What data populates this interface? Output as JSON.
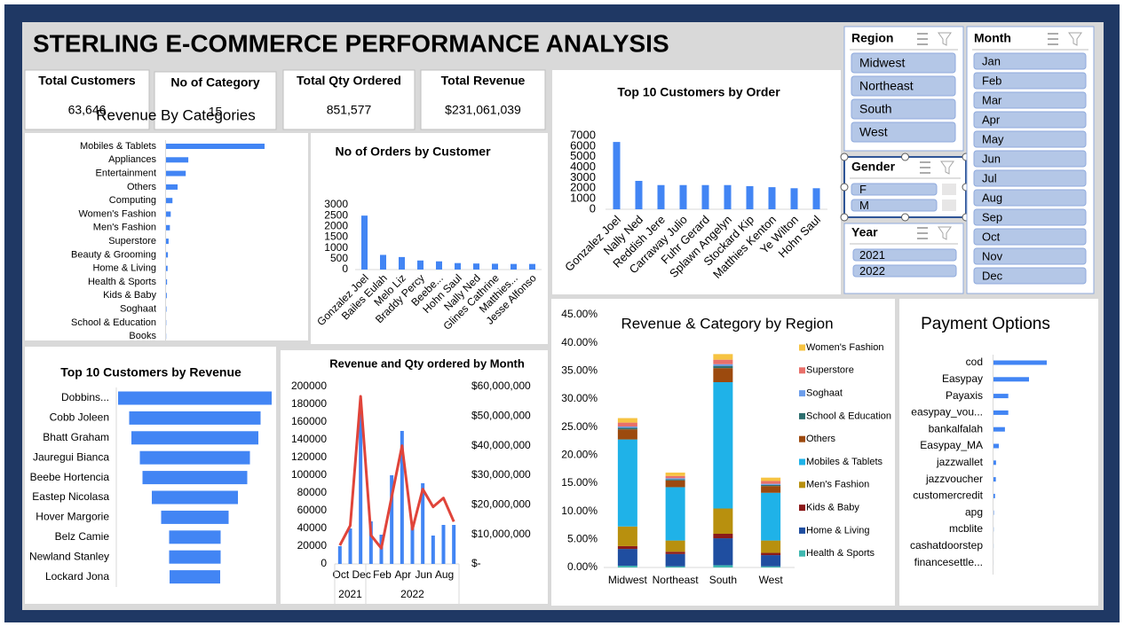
{
  "header": {
    "title": "STERLING E-COMMERCE PERFORMANCE ANALYSIS"
  },
  "kpis": [
    {
      "label": "Total Customers",
      "value": "63,646"
    },
    {
      "label": "No of Category",
      "value": "15"
    },
    {
      "label": "Total Qty Ordered",
      "value": "851,577"
    },
    {
      "label": "Total Revenue",
      "value": "$231,061,039"
    }
  ],
  "slicers": [
    {
      "title": "Region",
      "items": [
        "Midwest",
        "Northeast",
        "South",
        "West"
      ]
    },
    {
      "title": "Gender",
      "items": [
        "F",
        "M"
      ]
    },
    {
      "title": "Year",
      "items": [
        "2021",
        "2022"
      ]
    },
    {
      "title": "Month",
      "items": [
        "Jan",
        "Feb",
        "Mar",
        "Apr",
        "May",
        "Jun",
        "Jul",
        "Aug",
        "Sep",
        "Oct",
        "Nov",
        "Dec"
      ]
    }
  ],
  "chart_data": [
    {
      "type": "hbar",
      "title": "Revenue By Categories",
      "categories": [
        "Mobiles & Tablets",
        "Appliances",
        "Entertainment",
        "Others",
        "Computing",
        "Women's Fashion",
        "Men's Fashion",
        "Superstore",
        "Beauty & Grooming",
        "Home & Living",
        "Health & Sports",
        "Kids & Baby",
        "Soghaat",
        "School & Education",
        "Books"
      ],
      "values": [
        115000000,
        26000000,
        23000000,
        13500000,
        7500000,
        5500000,
        4500000,
        3000000,
        2200000,
        1800000,
        1200000,
        900000,
        500000,
        300000,
        200000
      ],
      "color": "#4285f4"
    },
    {
      "type": "bar",
      "title": "No of Orders by Customer",
      "categories": [
        "Gonzalez Joel",
        "Bailes Eulah",
        "Melo Liz",
        "Braddy Percy",
        "Beebe...",
        "Hohn Saul",
        "Nally Ned",
        "Glines Cathrine",
        "Matthies...",
        "Jesse Alfonso"
      ],
      "values": [
        2500,
        680,
        580,
        420,
        380,
        300,
        280,
        270,
        260,
        260
      ],
      "color": "#4285f4",
      "ylim": [
        0,
        3000
      ],
      "yticks": [
        0,
        500,
        1000,
        1500,
        2000,
        2500,
        3000
      ]
    },
    {
      "type": "bar",
      "title": "Top 10 Customers by Order",
      "categories": [
        "Gonzalez Joel",
        "Nally Ned",
        "Reddish Jere",
        "Carraway Julio",
        "Fuhr Gerard",
        "Splawn Angelyn",
        "Stockard Kip",
        "Matthies Kenton",
        "Ye Wilton",
        "Hohn Saul"
      ],
      "values": [
        6400,
        2700,
        2300,
        2300,
        2300,
        2300,
        2200,
        2100,
        2000,
        2000
      ],
      "color": "#4285f4",
      "ylim": [
        0,
        7000
      ],
      "yticks": [
        0,
        1000,
        2000,
        3000,
        4000,
        5000,
        6000,
        7000
      ]
    },
    {
      "type": "funnel",
      "title": "Top 10 Customers by Revenue",
      "categories": [
        "Dobbins...",
        "Cobb Joleen",
        "Bhatt Graham",
        "Jauregui Bianca",
        "Beebe Hortencia",
        "Eastep Nicolasa",
        "Hover Margorie",
        "Belz Camie",
        "Newland Stanley",
        "Lockard Jona"
      ],
      "values": [
        1730000,
        1480000,
        1430000,
        1240000,
        1180000,
        970000,
        760000,
        580000,
        580000,
        570000
      ],
      "color": "#4285f4"
    },
    {
      "type": "combo",
      "title": "Revenue and Qty ordered by Month",
      "categories": [
        "Oct",
        null,
        "Dec",
        null,
        "Feb",
        null,
        "Apr",
        null,
        "Jun",
        null,
        "Aug",
        null
      ],
      "year_groups": [
        {
          "label": "2021",
          "months": 3
        },
        {
          "label": "2022",
          "months": 9
        }
      ],
      "series": [
        {
          "kind": "bar",
          "color": "#4285f4",
          "values": [
            20000,
            40000,
            170000,
            48000,
            33000,
            100000,
            150000,
            46000,
            91000,
            32000,
            44000,
            44000
          ]
        },
        {
          "kind": "line",
          "axis": "y2",
          "color": "#e0443a",
          "values": [
            6300000,
            13000000,
            56700000,
            9700000,
            5300000,
            22700000,
            40000000,
            11700000,
            25300000,
            19300000,
            22300000,
            14300000
          ]
        }
      ],
      "ylim": [
        0,
        200000
      ],
      "yticks": [
        0,
        20000,
        40000,
        60000,
        80000,
        100000,
        120000,
        140000,
        160000,
        180000,
        200000
      ],
      "y2lim": [
        0,
        60000000
      ],
      "y2ticks": [
        {
          "value": 0,
          "label": "$-"
        },
        {
          "value": 10000000,
          "label": "$10,000,000"
        },
        {
          "value": 20000000,
          "label": "$20,000,000"
        },
        {
          "value": 30000000,
          "label": "$30,000,000"
        },
        {
          "value": 40000000,
          "label": "$40,000,000"
        },
        {
          "value": 50000000,
          "label": "$50,000,000"
        },
        {
          "value": 60000000,
          "label": "$60,000,000"
        }
      ]
    },
    {
      "type": "stacked_bar",
      "title": "Revenue & Category by Region",
      "categories": [
        "Midwest",
        "Northeast",
        "South",
        "West"
      ],
      "series": [
        {
          "name": "Women's Fashion",
          "color": "#f6c342",
          "values": [
            0.8,
            0.6,
            1.0,
            0.6
          ]
        },
        {
          "name": "Superstore",
          "color": "#e8706a",
          "values": [
            0.7,
            0.4,
            0.8,
            0.5
          ]
        },
        {
          "name": "Soghaat",
          "color": "#6d9eeb",
          "values": [
            0.2,
            0.2,
            0.3,
            0.2
          ]
        },
        {
          "name": "School & Education",
          "color": "#2e6f6f",
          "values": [
            0.3,
            0.2,
            0.4,
            0.2
          ]
        },
        {
          "name": "Others",
          "color": "#9c4a0e",
          "values": [
            1.8,
            1.2,
            2.5,
            1.2
          ]
        },
        {
          "name": "Mobiles & Tablets",
          "color": "#1fb2e8",
          "values": [
            15.5,
            9.5,
            22.5,
            8.5
          ]
        },
        {
          "name": "Men's Fashion",
          "color": "#b8900e",
          "values": [
            3.5,
            2.0,
            4.5,
            2.2
          ]
        },
        {
          "name": "Kids & Baby",
          "color": "#8b1a1a",
          "values": [
            0.5,
            0.4,
            0.8,
            0.4
          ]
        },
        {
          "name": "Home & Living",
          "color": "#1f4ea0",
          "values": [
            3.0,
            2.2,
            4.8,
            2.0
          ]
        },
        {
          "name": "Health & Sports",
          "color": "#3fb8b0",
          "values": [
            0.3,
            0.2,
            0.4,
            0.2
          ]
        }
      ],
      "ylim": [
        0,
        45
      ],
      "yticks": [
        {
          "value": 0,
          "label": "0.00%"
        },
        {
          "value": 5,
          "label": "5.00%"
        },
        {
          "value": 10,
          "label": "10.00%"
        },
        {
          "value": 15,
          "label": "15.00%"
        },
        {
          "value": 20,
          "label": "20.00%"
        },
        {
          "value": 25,
          "label": "25.00%"
        },
        {
          "value": 30,
          "label": "30.00%"
        },
        {
          "value": 35,
          "label": "35.00%"
        },
        {
          "value": 40,
          "label": "40.00%"
        },
        {
          "value": 45,
          "label": "45.00%"
        }
      ],
      "legend": "right"
    },
    {
      "type": "hbar",
      "title": "Payment Options",
      "categories": [
        "cod",
        "Easypay",
        "Payaxis",
        "easypay_vou...",
        "bankalfalah",
        "Easypay_MA",
        "jazzwallet",
        "jazzvoucher",
        "customercredit",
        "apg",
        "mcblite",
        "cashatdoorstep",
        "financesettle..."
      ],
      "values": [
        270000,
        180000,
        75000,
        75000,
        58000,
        27000,
        13000,
        12000,
        8000,
        2000,
        1000,
        500,
        200
      ],
      "color": "#4285f4"
    }
  ]
}
